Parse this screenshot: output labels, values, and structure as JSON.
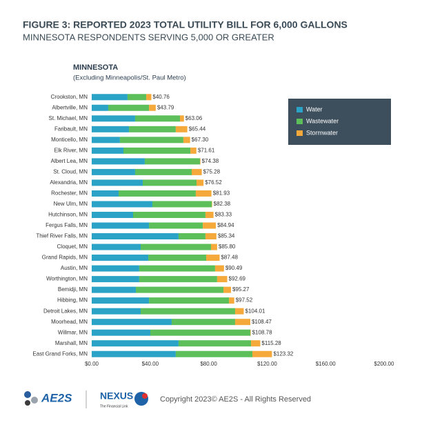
{
  "title": "FIGURE 3: REPORTED 2023 TOTAL UTILITY BILL FOR 6,000 GALLONS",
  "subtitle": "MINNESOTA RESPONDENTS SERVING 5,000 OR GREATER",
  "chart_data": {
    "type": "stacked-bar-horizontal",
    "title": "MINNESOTA",
    "subtitle": "(Excluding Minneapolis/St. Paul Metro)",
    "categories": [
      "Crookston, MN",
      "Albertville, MN",
      "St. Michael, MN",
      "Faribault, MN",
      "Monticello, MN",
      "Elk River, MN",
      "Albert Lea, MN",
      "St. Cloud, MN",
      "Alexandria, MN",
      "Rochester, MN",
      "New Ulm, MN",
      "Hutchinson, MN",
      "Fergus Falls, MN",
      "Thief River Falls, MN",
      "Cloquet, MN",
      "Grand Rapids, MN",
      "Austin, MN",
      "Worthington, MN",
      "Bemidji, MN",
      "Hibbing, MN",
      "Detroit Lakes, MN",
      "Moorhead, MN",
      "Willmar, MN",
      "Marshall, MN",
      "East Grand Forks, MN"
    ],
    "series": [
      {
        "name": "Water",
        "color": "#2aa3c6",
        "values": [
          24.5,
          11.3,
          29.7,
          25.5,
          19.3,
          21.7,
          36.3,
          29.7,
          34.9,
          18.4,
          41.5,
          28.3,
          39.2,
          59.4,
          33.5,
          38.7,
          32.5,
          32.5,
          30.2,
          39.2,
          33.5,
          54.7,
          40.1,
          59.4,
          57.5
        ]
      },
      {
        "name": "Wastewater",
        "color": "#5cbf5a",
        "values": [
          12.8,
          27.9,
          30.7,
          32.0,
          43.4,
          45.8,
          37.8,
          38.7,
          36.8,
          52.8,
          40.6,
          49.5,
          36.8,
          18.4,
          48.1,
          39.6,
          51.9,
          53.3,
          59.9,
          54.7,
          64.6,
          43.4,
          68.4,
          49.6,
          52.4
        ]
      },
      {
        "name": "Stormwater",
        "color": "#f5a93b",
        "values": [
          3.5,
          4.6,
          2.7,
          7.9,
          4.6,
          4.1,
          0.3,
          6.9,
          4.8,
          10.7,
          0.3,
          5.5,
          8.9,
          7.5,
          4.2,
          9.2,
          6.1,
          6.9,
          5.2,
          3.6,
          5.9,
          10.4,
          0.3,
          6.3,
          13.4
        ]
      }
    ],
    "totals": [
      40.76,
      43.79,
      63.06,
      65.44,
      67.3,
      71.61,
      74.38,
      75.28,
      76.52,
      81.93,
      82.38,
      83.33,
      84.94,
      85.34,
      85.8,
      87.48,
      90.49,
      92.69,
      95.27,
      97.52,
      104.01,
      108.47,
      108.78,
      115.28,
      123.32
    ],
    "total_labels": [
      "$40.76",
      "$43.79",
      "$63.06",
      "$65.44",
      "$67.30",
      "$71.61",
      "$74.38",
      "$75.28",
      "$76.52",
      "$81.93",
      "$82.38",
      "$83.33",
      "$84.94",
      "$85.34",
      "$85.80",
      "$87.48",
      "$90.49",
      "$92.69",
      "$95.27",
      "$97.52",
      "$104.01",
      "$108.47",
      "$108.78",
      "$115.28",
      "$123.32"
    ],
    "xlim": [
      0,
      200
    ],
    "xticks": [
      {
        "value": 0,
        "label": "$0.00"
      },
      {
        "value": 40,
        "label": "$40.00"
      },
      {
        "value": 80,
        "label": "$80.00"
      },
      {
        "value": 120,
        "label": "$120.00"
      },
      {
        "value": 160,
        "label": "$160.00"
      },
      {
        "value": 200,
        "label": "$200.00"
      }
    ],
    "legend": "top-right"
  },
  "footer": {
    "logo": "AE2S",
    "logo2": "NEXUS",
    "logo2_tagline": "The Financial Link",
    "copyright": "Copyright 2023© AE2S - All Rights Reserved"
  }
}
